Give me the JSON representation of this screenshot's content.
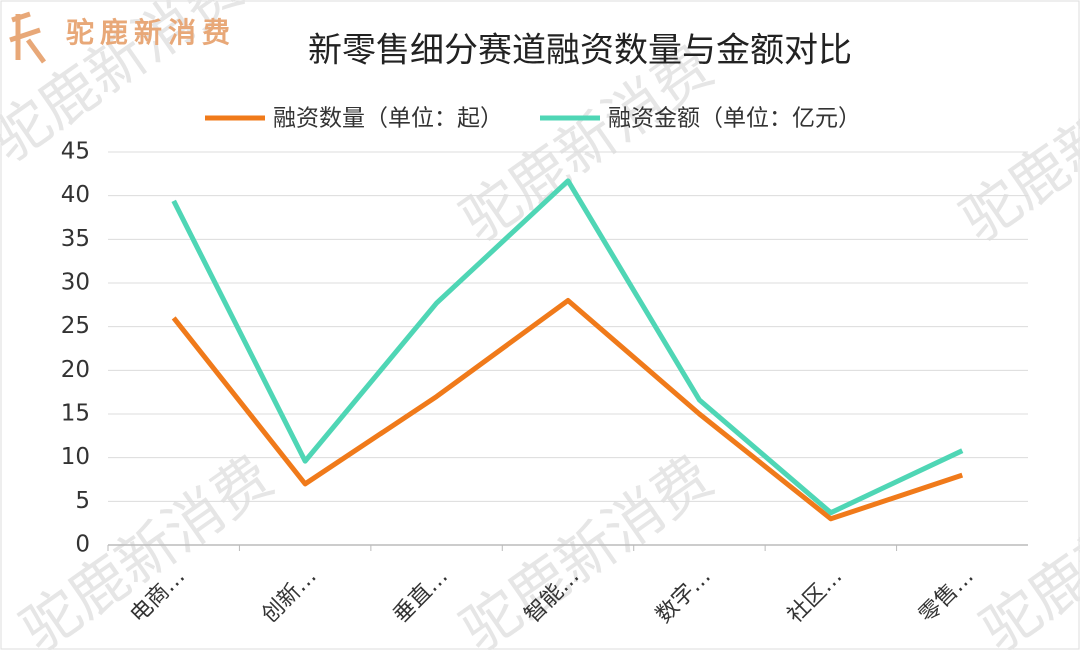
{
  "chart_data": {
    "type": "line",
    "title": "新零售细分赛道融资数量与金额对比",
    "categories": [
      "电商…",
      "创新…",
      "垂直…",
      "智能…",
      "数字…",
      "社区…",
      "零售…"
    ],
    "series": [
      {
        "name": "融资数量（单位：起）",
        "color": "#f07a1a",
        "values": [
          26,
          7,
          17,
          28,
          15,
          3,
          8
        ]
      },
      {
        "name": "融资金额（单位：亿元）",
        "color": "#4fd6b5",
        "values": [
          39.4,
          9.6,
          27.7,
          41.7,
          16.6,
          3.7,
          10.8
        ]
      }
    ],
    "ylim": [
      0,
      45
    ],
    "yticks": [
      0,
      5,
      10,
      15,
      20,
      25,
      30,
      35,
      40,
      45
    ],
    "grid": true,
    "legend": "top"
  },
  "logo": "驼鹿新消费",
  "watermark": "驼鹿新消费"
}
